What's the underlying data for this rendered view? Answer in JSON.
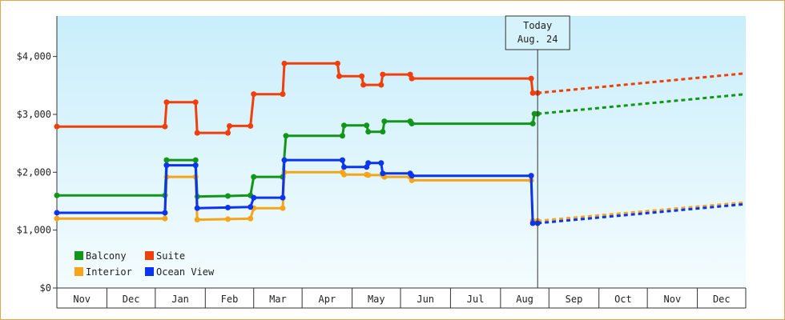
{
  "chart_data": {
    "type": "line",
    "step": true,
    "y_axis": {
      "ylim": [
        0,
        4700
      ],
      "ticks": [
        0,
        1000,
        2000,
        3000,
        4000
      ],
      "tick_labels": [
        "$0",
        "$1,000",
        "$2,000",
        "$3,000",
        "$4,000"
      ]
    },
    "x_axis": {
      "range": [
        "2011-10-31",
        "2012-12-31"
      ],
      "months": [
        {
          "label": "Nov",
          "start": "2011-10-31",
          "end": "2011-12-01"
        },
        {
          "label": "Dec",
          "start": "2011-12-01",
          "end": "2011-12-31"
        },
        {
          "label": "Jan",
          "start": "2011-12-31",
          "end": "2012-01-31"
        },
        {
          "label": "Feb",
          "start": "2012-01-31",
          "end": "2012-03-01"
        },
        {
          "label": "Mar",
          "start": "2012-03-01",
          "end": "2012-03-31"
        },
        {
          "label": "Apr",
          "start": "2012-03-31",
          "end": "2012-05-01"
        },
        {
          "label": "May",
          "start": "2012-05-01",
          "end": "2012-05-31"
        },
        {
          "label": "Jun",
          "start": "2012-05-31",
          "end": "2012-07-01"
        },
        {
          "label": "Jul",
          "start": "2012-07-01",
          "end": "2012-08-01"
        },
        {
          "label": "Aug",
          "start": "2012-08-01",
          "end": "2012-08-31"
        },
        {
          "label": "Sep",
          "start": "2012-08-31",
          "end": "2012-10-01"
        },
        {
          "label": "Oct",
          "start": "2012-10-01",
          "end": "2012-10-31"
        },
        {
          "label": "Nov",
          "start": "2012-10-31",
          "end": "2012-12-01"
        },
        {
          "label": "Dec",
          "start": "2012-12-01",
          "end": "2012-12-31"
        }
      ]
    },
    "today": {
      "date": "2012-08-24",
      "label_line1": "Today",
      "label_line2": "Aug. 24"
    },
    "legend": {
      "placement": "bottom-left"
    },
    "series": [
      {
        "name": "Balcony",
        "color": "#12961a",
        "points": [
          [
            "2011-10-31",
            1600
          ],
          [
            "2012-01-06",
            1600
          ],
          [
            "2012-01-07",
            2210
          ],
          [
            "2012-01-25",
            2210
          ],
          [
            "2012-01-26",
            1580
          ],
          [
            "2012-02-14",
            1590
          ],
          [
            "2012-02-28",
            1600
          ],
          [
            "2012-03-01",
            1920
          ],
          [
            "2012-03-19",
            1920
          ],
          [
            "2012-03-21",
            2630
          ],
          [
            "2012-04-25",
            2630
          ],
          [
            "2012-04-26",
            2810
          ],
          [
            "2012-05-10",
            2810
          ],
          [
            "2012-05-11",
            2700
          ],
          [
            "2012-05-20",
            2700
          ],
          [
            "2012-05-21",
            2880
          ],
          [
            "2012-06-06",
            2880
          ],
          [
            "2012-06-07",
            2840
          ],
          [
            "2012-08-21",
            2840
          ],
          [
            "2012-08-22",
            3010
          ],
          [
            "2012-08-24",
            3010
          ]
        ],
        "forecast": [
          [
            "2012-08-24",
            3010
          ],
          [
            "2012-12-31",
            3350
          ]
        ]
      },
      {
        "name": "Suite",
        "color": "#ee3f0c",
        "points": [
          [
            "2011-10-31",
            2790
          ],
          [
            "2012-01-06",
            2790
          ],
          [
            "2012-01-07",
            3210
          ],
          [
            "2012-01-25",
            3210
          ],
          [
            "2012-01-26",
            2680
          ],
          [
            "2012-02-14",
            2680
          ],
          [
            "2012-02-15",
            2800
          ],
          [
            "2012-02-28",
            2800
          ],
          [
            "2012-03-01",
            3350
          ],
          [
            "2012-03-19",
            3350
          ],
          [
            "2012-03-20",
            3880
          ],
          [
            "2012-04-22",
            3880
          ],
          [
            "2012-04-23",
            3660
          ],
          [
            "2012-05-07",
            3660
          ],
          [
            "2012-05-08",
            3510
          ],
          [
            "2012-05-19",
            3510
          ],
          [
            "2012-05-20",
            3690
          ],
          [
            "2012-06-06",
            3690
          ],
          [
            "2012-06-07",
            3620
          ],
          [
            "2012-08-20",
            3620
          ],
          [
            "2012-08-21",
            3370
          ],
          [
            "2012-08-24",
            3370
          ]
        ],
        "forecast": [
          [
            "2012-08-24",
            3370
          ],
          [
            "2012-12-31",
            3710
          ]
        ]
      },
      {
        "name": "Interior",
        "color": "#f4a51a",
        "points": [
          [
            "2011-10-31",
            1200
          ],
          [
            "2012-01-06",
            1200
          ],
          [
            "2012-01-07",
            1920
          ],
          [
            "2012-01-25",
            1920
          ],
          [
            "2012-01-26",
            1180
          ],
          [
            "2012-02-14",
            1190
          ],
          [
            "2012-02-28",
            1200
          ],
          [
            "2012-03-01",
            1380
          ],
          [
            "2012-03-19",
            1380
          ],
          [
            "2012-03-20",
            2000
          ],
          [
            "2012-04-25",
            2000
          ],
          [
            "2012-04-26",
            1960
          ],
          [
            "2012-05-10",
            1960
          ],
          [
            "2012-05-11",
            1950
          ],
          [
            "2012-05-20",
            1950
          ],
          [
            "2012-05-21",
            1920
          ],
          [
            "2012-06-06",
            1920
          ],
          [
            "2012-06-07",
            1860
          ],
          [
            "2012-08-20",
            1860
          ],
          [
            "2012-08-21",
            1160
          ],
          [
            "2012-08-24",
            1160
          ]
        ],
        "forecast": [
          [
            "2012-08-24",
            1160
          ],
          [
            "2012-12-31",
            1480
          ]
        ]
      },
      {
        "name": "Ocean View",
        "color": "#0a34f0",
        "points": [
          [
            "2011-10-31",
            1300
          ],
          [
            "2012-01-06",
            1300
          ],
          [
            "2012-01-07",
            2120
          ],
          [
            "2012-01-25",
            2120
          ],
          [
            "2012-01-26",
            1380
          ],
          [
            "2012-02-14",
            1390
          ],
          [
            "2012-02-28",
            1400
          ],
          [
            "2012-03-01",
            1560
          ],
          [
            "2012-03-19",
            1560
          ],
          [
            "2012-03-20",
            2210
          ],
          [
            "2012-04-25",
            2210
          ],
          [
            "2012-04-26",
            2090
          ],
          [
            "2012-05-10",
            2090
          ],
          [
            "2012-05-11",
            2160
          ],
          [
            "2012-05-19",
            2160
          ],
          [
            "2012-05-20",
            1980
          ],
          [
            "2012-06-06",
            1980
          ],
          [
            "2012-06-07",
            1940
          ],
          [
            "2012-08-20",
            1940
          ],
          [
            "2012-08-21",
            1120
          ],
          [
            "2012-08-24",
            1120
          ]
        ],
        "forecast": [
          [
            "2012-08-24",
            1120
          ],
          [
            "2012-12-31",
            1450
          ]
        ]
      }
    ]
  }
}
